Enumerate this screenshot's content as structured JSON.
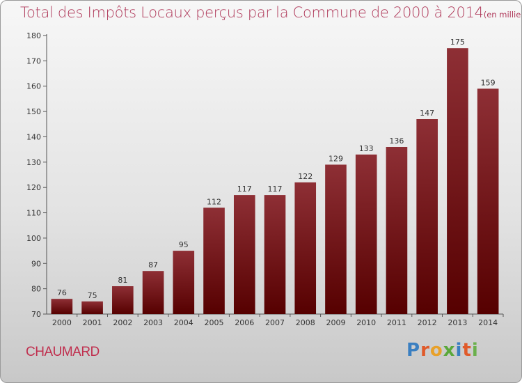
{
  "title": "Total des Impôts Locaux perçus par la Commune de 2000 à 2014",
  "unit": "(en milliers d'€)",
  "commune": "CHAUMARD",
  "brand": "Proxiti",
  "brand_colors": [
    "#3a7fc1",
    "#e05a2a",
    "#e8a12a",
    "#5aa83a",
    "#3a7fc1",
    "#e05a2a",
    "#6ab04c"
  ],
  "bar_color": "#7a1a1f",
  "title_color": "#b03a5b",
  "chart_data": {
    "type": "bar",
    "categories": [
      "2000",
      "2001",
      "2002",
      "2003",
      "2004",
      "2005",
      "2006",
      "2007",
      "2008",
      "2009",
      "2010",
      "2011",
      "2012",
      "2013",
      "2014"
    ],
    "values": [
      76,
      75,
      81,
      87,
      95,
      112,
      117,
      117,
      122,
      129,
      133,
      136,
      147,
      175,
      159
    ],
    "ylim": [
      70,
      180
    ],
    "yticks": [
      70,
      80,
      90,
      100,
      110,
      120,
      130,
      140,
      150,
      160,
      170,
      180
    ],
    "grid": false,
    "legend": "none"
  }
}
